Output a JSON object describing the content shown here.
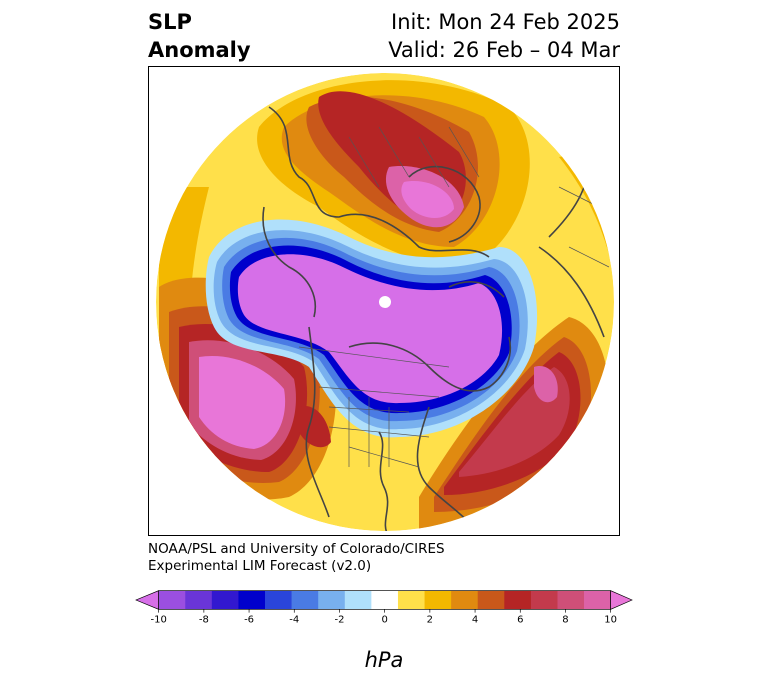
{
  "title": {
    "line1": "SLP",
    "line2": "Anomaly"
  },
  "subtitle": {
    "line1": "Init: Mon 24 Feb 2025",
    "line2": "Valid: 26 Feb – 04 Mar"
  },
  "credit": {
    "line1": "NOAA/PSL and University of Colorado/CIRES",
    "line2": "Experimental LIM Forecast (v2.0)"
  },
  "colorbar": {
    "label": "hPa",
    "ticks": [
      "-10",
      "-8",
      "-6",
      "-4",
      "-2",
      "0",
      "2",
      "4",
      "6",
      "8",
      "10"
    ],
    "tick_values": [
      -10,
      -8,
      -6,
      -4,
      -2,
      0,
      2,
      4,
      6,
      8,
      10
    ],
    "colors": [
      "#d66fe8",
      "#9b4fe0",
      "#6a35d8",
      "#3218cf",
      "#0000cc",
      "#2a45db",
      "#4a7be4",
      "#78b0ee",
      "#b0e0fb",
      "#ffffff",
      "#ffe04a",
      "#f3b800",
      "#e08a10",
      "#c9581a",
      "#b52525",
      "#c33a4c",
      "#cf4f78",
      "#dc62a8",
      "#e876d8"
    ],
    "extend": "both"
  },
  "map_colors": {
    "low_core": "#d66fe8",
    "low_edge": "#0000cc",
    "low_fringe": "#78b0ee",
    "high_yellow": "#ffe04a",
    "high_orange": "#f3b800",
    "high_red": "#b52525",
    "high_core": "#e876d8",
    "coast": "#444444"
  }
}
